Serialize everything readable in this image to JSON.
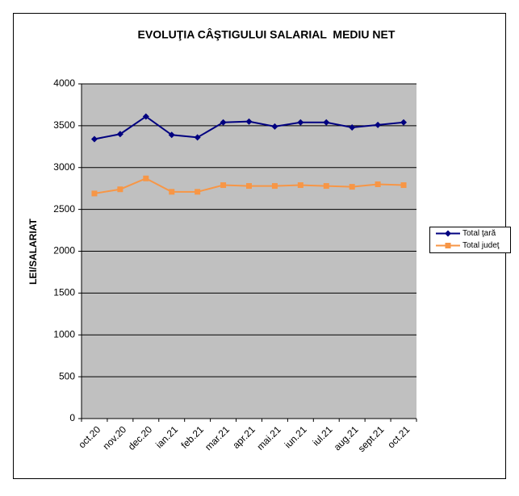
{
  "chart_data": {
    "type": "line",
    "title": "EVOLUŢIA CÂŞTIGULUI SALARIAL  MEDIU NET",
    "y_label": "LEI/SALARIAT",
    "categories": [
      "oct.20",
      "nov.20",
      "dec.20",
      "ian.21",
      "feb.21",
      "mar.21",
      "apr.21",
      "mai.21",
      "iun.21",
      "iul.21",
      "aug.21",
      "sept.21",
      "oct.21"
    ],
    "series": [
      {
        "name": "Total ţară",
        "color": "#000080",
        "marker": "diamond",
        "values": [
          3340,
          3400,
          3610,
          3390,
          3360,
          3540,
          3550,
          3490,
          3540,
          3540,
          3480,
          3510,
          3540
        ]
      },
      {
        "name": "Total judeţ",
        "color": "#f79646",
        "marker": "square",
        "values": [
          2690,
          2740,
          2870,
          2710,
          2710,
          2790,
          2780,
          2780,
          2790,
          2780,
          2770,
          2800,
          2790
        ]
      }
    ],
    "ylim": [
      0,
      4000
    ],
    "yticks": [
      0,
      500,
      1000,
      1500,
      2000,
      2500,
      3000,
      3500,
      4000
    ],
    "grid": true,
    "legend": "right",
    "plot_background": "#c0c0c0"
  }
}
